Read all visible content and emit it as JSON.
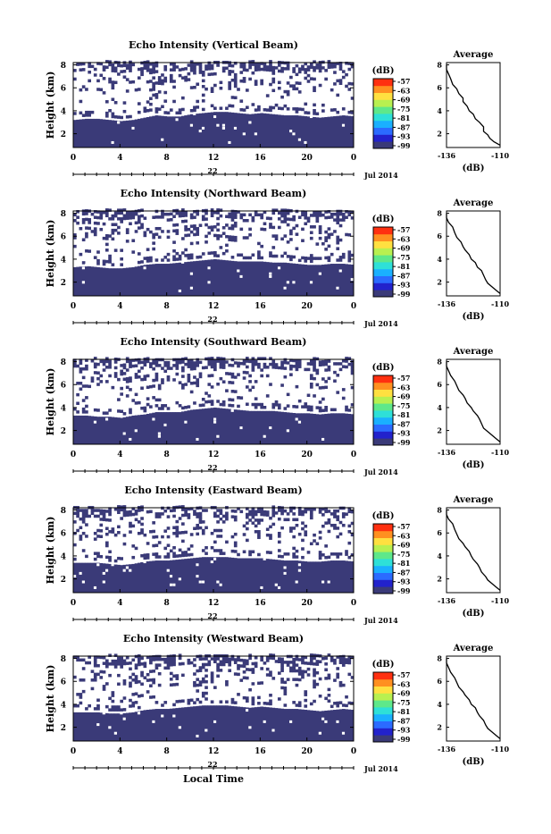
{
  "figure": {
    "local_time_label": "Local Time",
    "date_label": "Jul 2014",
    "day_label": "22",
    "colorbar_unit": "(dB)",
    "average_title": "Average",
    "average_xlabel": "(dB)",
    "height_ylabel": "Height (km)"
  },
  "colors": {
    "background_echo": "#3a3a78",
    "colormap": [
      "#3a3a78",
      "#2222cc",
      "#2b6bff",
      "#1ab0ff",
      "#2ee0d8",
      "#5ee88a",
      "#b8f050",
      "#ffe040",
      "#ff9020",
      "#ff3010"
    ]
  },
  "chart_data": [
    {
      "type": "heatmap",
      "title": "Echo Intensity (Vertical Beam)",
      "ylabel": "Height (km)",
      "xlabel": "",
      "x_ticks": [
        "0",
        "4",
        "8",
        "12",
        "16",
        "20",
        "0"
      ],
      "xlim": [
        0,
        24
      ],
      "y_ticks": [
        "2",
        "4",
        "6",
        "8"
      ],
      "ylim": [
        0.8,
        8.2
      ],
      "colorbar": {
        "unit": "(dB)",
        "ticks": [
          "-57",
          "-63",
          "-69",
          "-75",
          "-81",
          "-87",
          "-93",
          "-99"
        ]
      },
      "echo_top_km": [
        3.2,
        3.3,
        3.3,
        3.2,
        3.1,
        3.2,
        3.4,
        3.6,
        3.5,
        3.5,
        3.7,
        3.8,
        3.9,
        3.9,
        3.8,
        3.7,
        3.8,
        3.7,
        3.6,
        3.6,
        3.5,
        3.4,
        3.5,
        3.6,
        3.5
      ],
      "average_profile": {
        "x": [
          -110,
          -113,
          -115,
          -116,
          -118,
          -118,
          -120,
          -122,
          -123,
          -125,
          -126,
          -128,
          -128,
          -130,
          -131,
          -133,
          -134,
          -135,
          -136,
          -136
        ],
        "y": [
          1.0,
          1.3,
          1.6,
          1.9,
          2.2,
          2.6,
          3.0,
          3.3,
          3.7,
          4.0,
          4.4,
          4.8,
          5.1,
          5.5,
          5.9,
          6.3,
          6.8,
          7.2,
          7.6,
          8.0
        ],
        "xlim": [
          -136,
          -110
        ],
        "ylim": [
          1,
          8
        ],
        "x_ticks": [
          "-136",
          "-110"
        ],
        "y_ticks": [
          "2",
          "4",
          "6",
          "8"
        ]
      }
    },
    {
      "type": "heatmap",
      "title": "Echo Intensity (Northward Beam)",
      "ylabel": "Height (km)",
      "xlabel": "",
      "x_ticks": [
        "0",
        "4",
        "8",
        "12",
        "16",
        "20",
        "0"
      ],
      "xlim": [
        0,
        24
      ],
      "y_ticks": [
        "2",
        "4",
        "6",
        "8"
      ],
      "ylim": [
        0.8,
        8.2
      ],
      "colorbar": {
        "unit": "(dB)",
        "ticks": [
          "-57",
          "-63",
          "-69",
          "-75",
          "-81",
          "-87",
          "-93",
          "-99"
        ]
      },
      "echo_top_km": [
        3.3,
        3.4,
        3.3,
        3.2,
        3.2,
        3.3,
        3.5,
        3.6,
        3.6,
        3.7,
        3.8,
        3.9,
        4.0,
        3.9,
        3.8,
        3.8,
        3.8,
        3.7,
        3.7,
        3.6,
        3.5,
        3.5,
        3.6,
        3.6,
        3.5
      ],
      "average_profile": {
        "x": [
          -110,
          -112,
          -114,
          -116,
          -117,
          -118,
          -119,
          -121,
          -122,
          -124,
          -125,
          -127,
          -128,
          -129,
          -131,
          -132,
          -133,
          -135,
          -136,
          -136
        ],
        "y": [
          1.0,
          1.3,
          1.6,
          1.9,
          2.2,
          2.6,
          3.0,
          3.3,
          3.7,
          4.0,
          4.4,
          4.8,
          5.1,
          5.5,
          5.9,
          6.3,
          6.8,
          7.2,
          7.6,
          8.0
        ],
        "xlim": [
          -136,
          -110
        ],
        "ylim": [
          1,
          8
        ],
        "x_ticks": [
          "-136",
          "-110"
        ],
        "y_ticks": [
          "2",
          "4",
          "6",
          "8"
        ]
      }
    },
    {
      "type": "heatmap",
      "title": "Echo Intensity (Southward Beam)",
      "ylabel": "Height (km)",
      "xlabel": "",
      "x_ticks": [
        "0",
        "4",
        "8",
        "12",
        "16",
        "20",
        "0"
      ],
      "xlim": [
        0,
        24
      ],
      "y_ticks": [
        "2",
        "4",
        "6",
        "8"
      ],
      "ylim": [
        0.8,
        8.2
      ],
      "colorbar": {
        "unit": "(dB)",
        "ticks": [
          "-57",
          "-63",
          "-69",
          "-75",
          "-81",
          "-87",
          "-93",
          "-99"
        ]
      },
      "echo_top_km": [
        3.3,
        3.3,
        3.2,
        3.2,
        3.1,
        3.3,
        3.4,
        3.6,
        3.6,
        3.6,
        3.8,
        3.9,
        4.0,
        3.9,
        3.8,
        3.7,
        3.7,
        3.7,
        3.6,
        3.5,
        3.5,
        3.4,
        3.5,
        3.5,
        3.4
      ],
      "average_profile": {
        "x": [
          -110,
          -112,
          -114,
          -116,
          -118,
          -119,
          -120,
          -121,
          -123,
          -124,
          -126,
          -127,
          -128,
          -130,
          -131,
          -132,
          -134,
          -135,
          -136,
          -136
        ],
        "y": [
          1.0,
          1.3,
          1.6,
          1.9,
          2.2,
          2.6,
          3.0,
          3.3,
          3.7,
          4.0,
          4.4,
          4.8,
          5.1,
          5.5,
          5.9,
          6.3,
          6.8,
          7.2,
          7.6,
          8.0
        ],
        "xlim": [
          -136,
          -110
        ],
        "ylim": [
          1,
          8
        ],
        "x_ticks": [
          "-136",
          "-110"
        ],
        "y_ticks": [
          "2",
          "4",
          "6",
          "8"
        ]
      }
    },
    {
      "type": "heatmap",
      "title": "Echo Intensity (Eastward Beam)",
      "ylabel": "Height (km)",
      "xlabel": "",
      "x_ticks": [
        "0",
        "4",
        "8",
        "12",
        "16",
        "20",
        "0"
      ],
      "xlim": [
        0,
        24
      ],
      "y_ticks": [
        "2",
        "4",
        "6",
        "8"
      ],
      "ylim": [
        0.8,
        8.2
      ],
      "colorbar": {
        "unit": "(dB)",
        "ticks": [
          "-57",
          "-63",
          "-69",
          "-75",
          "-81",
          "-87",
          "-93",
          "-99"
        ]
      },
      "echo_top_km": [
        3.4,
        3.4,
        3.4,
        3.3,
        3.2,
        3.3,
        3.5,
        3.6,
        3.6,
        3.7,
        3.8,
        3.9,
        3.9,
        3.9,
        3.8,
        3.8,
        3.8,
        3.7,
        3.6,
        3.6,
        3.5,
        3.5,
        3.6,
        3.6,
        3.5
      ],
      "average_profile": {
        "x": [
          -110,
          -112,
          -114,
          -116,
          -117,
          -119,
          -120,
          -121,
          -123,
          -124,
          -125,
          -127,
          -128,
          -130,
          -131,
          -132,
          -133,
          -135,
          -136,
          -136
        ],
        "y": [
          1.0,
          1.3,
          1.6,
          1.9,
          2.2,
          2.6,
          3.0,
          3.3,
          3.7,
          4.0,
          4.4,
          4.8,
          5.1,
          5.5,
          5.9,
          6.3,
          6.8,
          7.2,
          7.6,
          8.0
        ],
        "xlim": [
          -136,
          -110
        ],
        "ylim": [
          1,
          8
        ],
        "x_ticks": [
          "-136",
          "-110"
        ],
        "y_ticks": [
          "2",
          "4",
          "6",
          "8"
        ]
      }
    },
    {
      "type": "heatmap",
      "title": "Echo Intensity (Westward Beam)",
      "ylabel": "Height (km)",
      "xlabel": "Local Time",
      "x_ticks": [
        "0",
        "4",
        "8",
        "12",
        "16",
        "20",
        "0"
      ],
      "xlim": [
        0,
        24
      ],
      "y_ticks": [
        "2",
        "4",
        "6",
        "8"
      ],
      "ylim": [
        0.8,
        8.2
      ],
      "colorbar": {
        "unit": "(dB)",
        "ticks": [
          "-57",
          "-63",
          "-69",
          "-75",
          "-81",
          "-87",
          "-93",
          "-99"
        ]
      },
      "echo_top_km": [
        3.3,
        3.3,
        3.3,
        3.2,
        3.2,
        3.3,
        3.5,
        3.6,
        3.6,
        3.7,
        3.8,
        3.9,
        3.9,
        3.9,
        3.8,
        3.7,
        3.8,
        3.7,
        3.6,
        3.6,
        3.5,
        3.4,
        3.5,
        3.6,
        3.5
      ],
      "average_profile": {
        "x": [
          -110,
          -112,
          -114,
          -116,
          -117,
          -118,
          -120,
          -121,
          -122,
          -124,
          -125,
          -127,
          -128,
          -130,
          -131,
          -132,
          -134,
          -135,
          -136,
          -136
        ],
        "y": [
          1.0,
          1.3,
          1.6,
          1.9,
          2.2,
          2.6,
          3.0,
          3.3,
          3.7,
          4.0,
          4.4,
          4.8,
          5.1,
          5.5,
          5.9,
          6.3,
          6.8,
          7.2,
          7.6,
          8.0
        ],
        "xlim": [
          -136,
          -110
        ],
        "ylim": [
          1,
          8
        ],
        "x_ticks": [
          "-136",
          "-110"
        ],
        "y_ticks": [
          "2",
          "4",
          "6",
          "8"
        ]
      }
    }
  ]
}
